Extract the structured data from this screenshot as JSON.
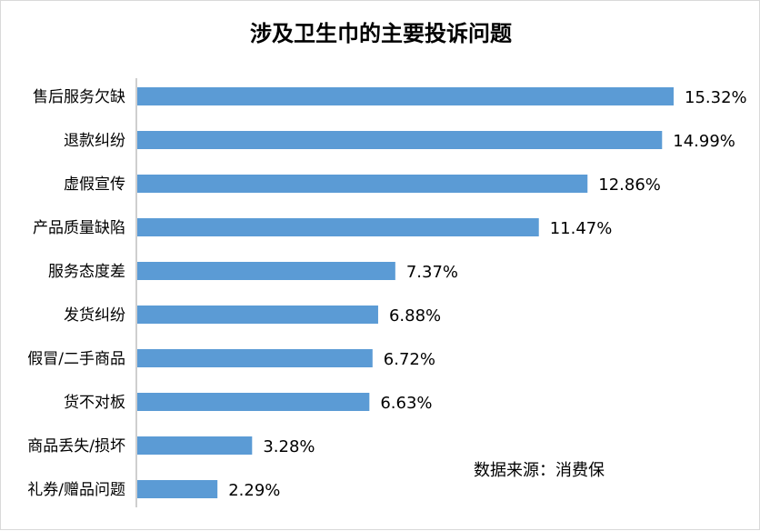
{
  "chart_data": {
    "type": "bar",
    "orientation": "horizontal",
    "title": "涉及卫生巾的主要投诉问题",
    "categories": [
      "售后服务欠缺",
      "退款纠纷",
      "虚假宣传",
      "产品质量缺陷",
      "服务态度差",
      "发货纠纷",
      "假冒/二手商品",
      "货不对板",
      "商品丢失/损坏",
      "礼券/赠品问题"
    ],
    "values": [
      15.32,
      14.99,
      12.86,
      11.47,
      7.37,
      6.88,
      6.72,
      6.63,
      3.28,
      2.29
    ],
    "value_labels": [
      "15.32%",
      "14.99%",
      "12.86%",
      "11.47%",
      "7.37%",
      "6.88%",
      "6.72%",
      "6.63%",
      "3.28%",
      "2.29%"
    ],
    "unit": "%",
    "xlim": [
      0,
      15.32
    ],
    "grid": false,
    "legend": "none",
    "bar_color": "#5b9bd5",
    "axis_color": "#bfbfbf",
    "source_note": "数据来源：消费保"
  }
}
